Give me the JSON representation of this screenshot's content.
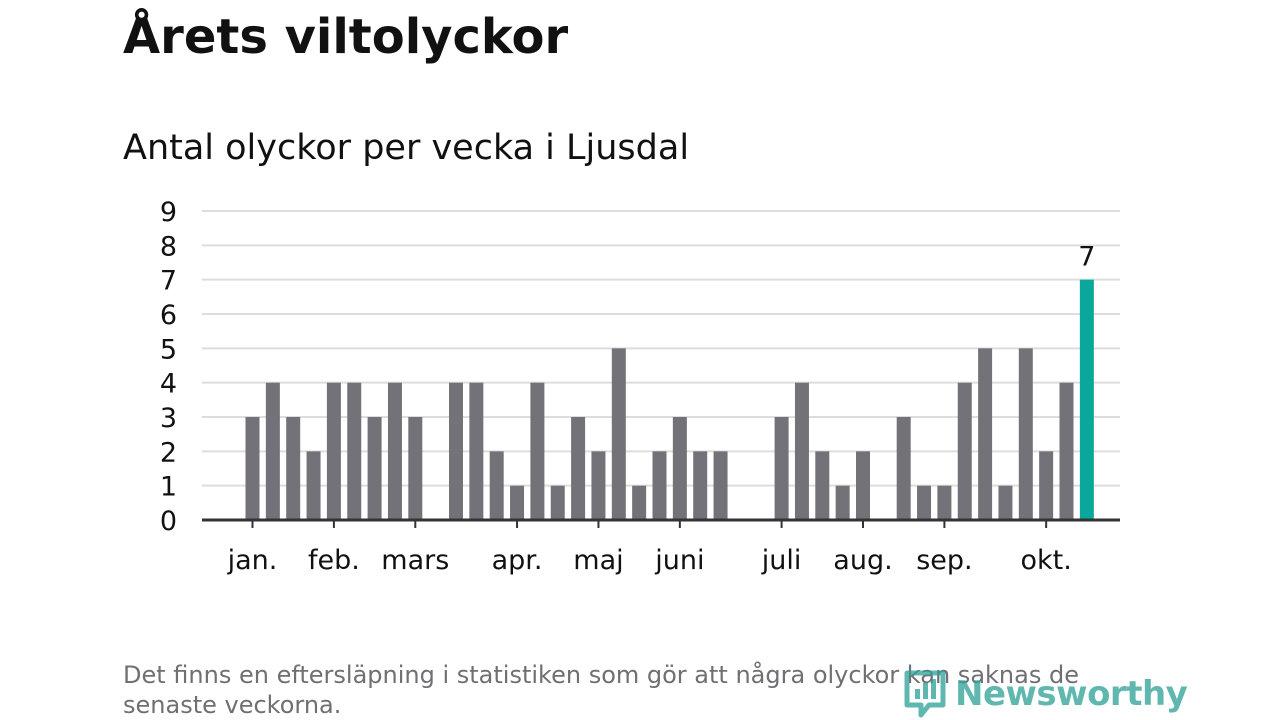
{
  "header": {
    "title": "Årets viltolyckor",
    "subtitle": "Antal olyckor per vecka i Ljusdal"
  },
  "footer": {
    "note": "Det finns en eftersläpning i statistiken som gör att några olyckor kan saknas de senaste veckorna.",
    "logo_text": "Newsworthy"
  },
  "colors": {
    "bar": "#737278",
    "highlight": "#0aa89c",
    "grid": "#dddddd",
    "axis": "#333333",
    "text": "#111111"
  },
  "chart_data": {
    "type": "bar",
    "title": "Antal olyckor per vecka i Ljusdal",
    "xlabel": "",
    "ylabel": "",
    "ylim": [
      0,
      9
    ],
    "yticks": [
      0,
      1,
      2,
      3,
      4,
      5,
      6,
      7,
      8,
      9
    ],
    "grid": true,
    "weeks": [
      1,
      2,
      3,
      4,
      5,
      6,
      7,
      8,
      9,
      10,
      11,
      12,
      13,
      14,
      15,
      16,
      17,
      18,
      19,
      20,
      21,
      22,
      23,
      24,
      25,
      26,
      27,
      28,
      29,
      30,
      31,
      32,
      33,
      34,
      35,
      36,
      37,
      38,
      39,
      40,
      41,
      42
    ],
    "values": [
      3,
      4,
      3,
      2,
      4,
      4,
      3,
      4,
      3,
      0,
      4,
      4,
      2,
      1,
      4,
      1,
      3,
      2,
      5,
      1,
      2,
      3,
      2,
      2,
      0,
      0,
      3,
      4,
      2,
      1,
      2,
      0,
      3,
      1,
      1,
      4,
      5,
      1,
      5,
      2,
      4,
      7
    ],
    "highlight_index": 41,
    "highlight_label": "7",
    "month_labels": [
      {
        "label": "jan.",
        "week": 1
      },
      {
        "label": "feb.",
        "week": 5
      },
      {
        "label": "mars",
        "week": 9
      },
      {
        "label": "apr.",
        "week": 14
      },
      {
        "label": "maj",
        "week": 18
      },
      {
        "label": "juni",
        "week": 22
      },
      {
        "label": "juli",
        "week": 27
      },
      {
        "label": "aug.",
        "week": 31
      },
      {
        "label": "sep.",
        "week": 35
      },
      {
        "label": "okt.",
        "week": 40
      }
    ]
  }
}
